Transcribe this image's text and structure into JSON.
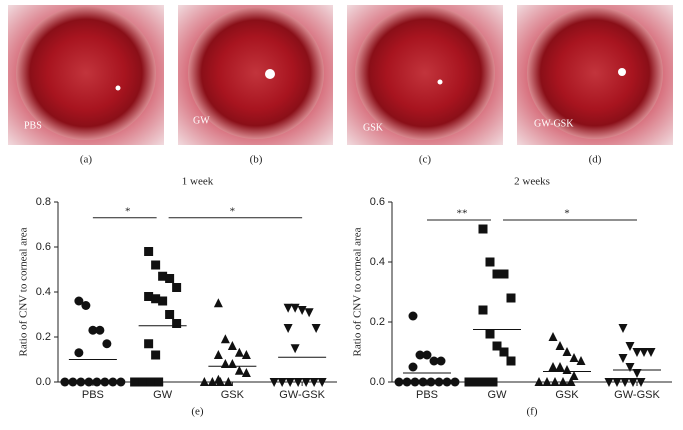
{
  "panels": [
    {
      "label": "PBS",
      "caption": "(a)"
    },
    {
      "label": "GW",
      "caption": "(b)"
    },
    {
      "label": "GSK",
      "caption": "(c)"
    },
    {
      "label": "GW-GSK",
      "caption": "(d)"
    }
  ],
  "chart_data": [
    {
      "type": "strip",
      "title": "1 week",
      "y_label": "Ratio of CNV to corneal area",
      "caption": "(e)",
      "categories": [
        "PBS",
        "GW",
        "GSK",
        "GW-GSK"
      ],
      "markers": [
        "circle",
        "square",
        "triangle",
        "triangle-down"
      ],
      "color": "#111111",
      "points": [
        [
          0.36,
          0.34,
          0.23,
          0.23,
          0.17,
          0.13,
          0,
          0,
          0,
          0,
          0,
          0,
          0,
          0
        ],
        [
          0.58,
          0.52,
          0.47,
          0.46,
          0.42,
          0.38,
          0.37,
          0.36,
          0.3,
          0.26,
          0.17,
          0.12,
          0,
          0,
          0,
          0
        ],
        [
          0.35,
          0.19,
          0.16,
          0.13,
          0.12,
          0.12,
          0.08,
          0.08,
          0.05,
          0.04,
          0.01,
          0,
          0,
          0,
          0
        ],
        [
          0.33,
          0.33,
          0.32,
          0.31,
          0.24,
          0.24,
          0.15,
          0,
          0,
          0,
          0,
          0,
          0,
          0
        ]
      ],
      "means": [
        0.1,
        0.25,
        0.07,
        0.11
      ],
      "brackets": [
        {
          "from": "PBS",
          "to": "GW",
          "y": 0.73,
          "label": "*"
        },
        {
          "from": "GW",
          "to": "GW-GSK",
          "y": 0.73,
          "label": "*"
        }
      ],
      "ylim": [
        0,
        0.8
      ],
      "yticks": [
        {
          "value": 0,
          "label": "0.0"
        },
        0.2,
        0.4,
        0.6,
        0.8
      ]
    },
    {
      "type": "strip",
      "title": "2 weeks",
      "y_label": "Ratio of CNV to corneal area",
      "caption": "(f)",
      "categories": [
        "PBS",
        "GW",
        "GSK",
        "GW-GSK"
      ],
      "markers": [
        "circle",
        "square",
        "triangle",
        "triangle-down"
      ],
      "color": "#111111",
      "points": [
        [
          0.22,
          0.09,
          0.09,
          0.07,
          0.07,
          0.05,
          0,
          0,
          0,
          0,
          0,
          0,
          0,
          0
        ],
        [
          0.51,
          0.4,
          0.36,
          0.36,
          0.28,
          0.24,
          0.16,
          0.12,
          0.1,
          0.07,
          0,
          0,
          0,
          0
        ],
        [
          0.15,
          0.12,
          0.1,
          0.08,
          0.07,
          0.05,
          0.05,
          0.04,
          0.02,
          0,
          0,
          0,
          0,
          0
        ],
        [
          0.18,
          0.12,
          0.1,
          0.1,
          0.1,
          0.08,
          0.05,
          0.03,
          0,
          0,
          0,
          0,
          0
        ]
      ],
      "means": [
        0.03,
        0.175,
        0.035,
        0.04
      ],
      "brackets": [
        {
          "from": "PBS",
          "to": "GW",
          "y": 0.54,
          "label": "**"
        },
        {
          "from": "GW",
          "to": "GW-GSK",
          "y": 0.54,
          "label": "*"
        }
      ],
      "ylim": [
        0,
        0.6
      ],
      "yticks": [
        {
          "value": 0,
          "label": "0.0"
        },
        0.2,
        0.4,
        0.6
      ]
    }
  ]
}
